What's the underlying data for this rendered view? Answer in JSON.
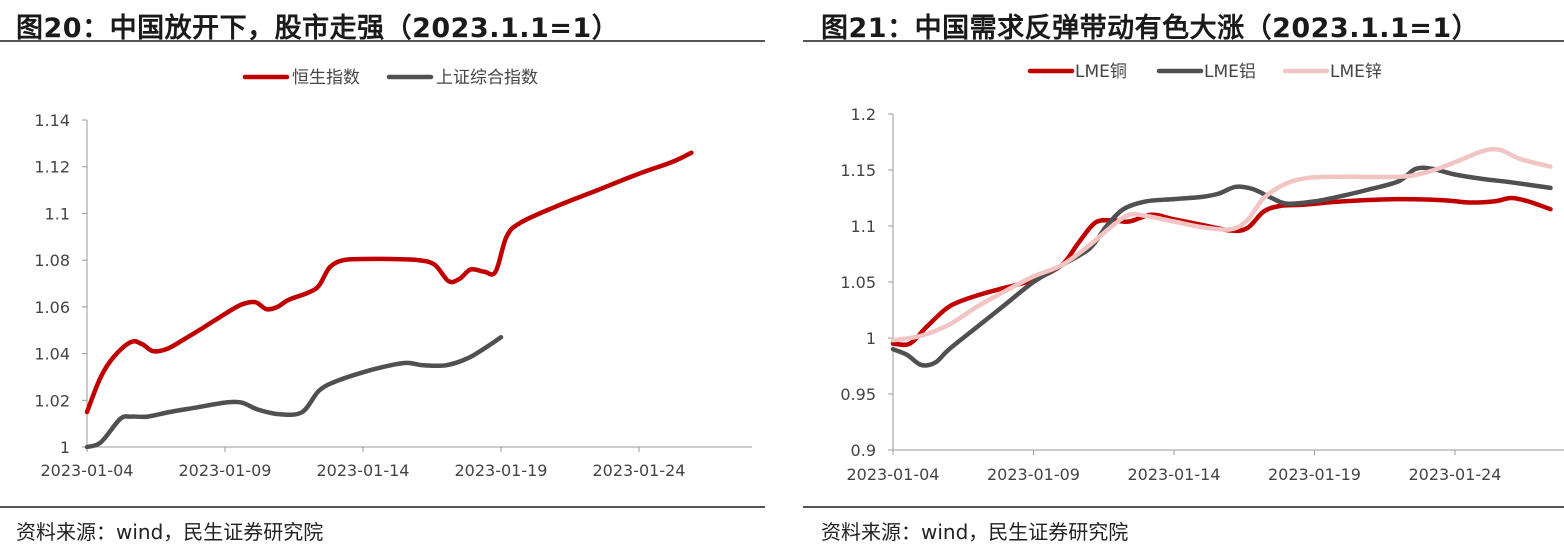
{
  "panels": [
    {
      "title": "图20：中国放开下，股市走强（2023.1.1=1）",
      "source": "资料来源：wind，民生证券研究院",
      "chart_data": {
        "type": "line",
        "x_ticks": [
          "2023-01-04",
          "2023-01-09",
          "2023-01-14",
          "2023-01-19",
          "2023-01-24"
        ],
        "x_range": [
          0,
          24
        ],
        "ylim": [
          1,
          1.14
        ],
        "y_ticks": [
          "1",
          "1.02",
          "1.04",
          "1.06",
          "1.08",
          "1.1",
          "1.12",
          "1.14"
        ],
        "legend_position": "top-center",
        "series": [
          {
            "name": "恒生指数",
            "color": "#c00000",
            "points": [
              [
                0,
                1.015
              ],
              [
                0.5,
                1.03
              ],
              [
                1,
                1.039
              ],
              [
                1.6,
                1.045
              ],
              [
                2,
                1.044
              ],
              [
                2.4,
                1.041
              ],
              [
                2.9,
                1.042
              ],
              [
                3.5,
                1.046
              ],
              [
                4.2,
                1.051
              ],
              [
                5,
                1.057
              ],
              [
                5.6,
                1.061
              ],
              [
                6.1,
                1.062
              ],
              [
                6.5,
                1.059
              ],
              [
                6.9,
                1.06
              ],
              [
                7.3,
                1.063
              ],
              [
                8,
                1.066
              ],
              [
                8.4,
                1.069
              ],
              [
                8.8,
                1.077
              ],
              [
                9.3,
                1.08
              ],
              [
                10,
                1.0805
              ],
              [
                11,
                1.0805
              ],
              [
                12,
                1.08
              ],
              [
                12.6,
                1.078
              ],
              [
                13.1,
                1.071
              ],
              [
                13.5,
                1.072
              ],
              [
                13.9,
                1.076
              ],
              [
                14.4,
                1.075
              ],
              [
                14.8,
                1.075
              ],
              [
                15.2,
                1.09
              ],
              [
                15.7,
                1.096
              ],
              [
                17,
                1.103
              ],
              [
                18.5,
                1.11
              ],
              [
                20,
                1.117
              ],
              [
                21.2,
                1.122
              ],
              [
                21.9,
                1.126
              ]
            ]
          },
          {
            "name": "上证综合指数",
            "color": "#505050",
            "points": [
              [
                0,
                1.0
              ],
              [
                0.5,
                1.002
              ],
              [
                1.2,
                1.012
              ],
              [
                1.6,
                1.013
              ],
              [
                2.2,
                1.013
              ],
              [
                3,
                1.015
              ],
              [
                4,
                1.017
              ],
              [
                5,
                1.019
              ],
              [
                5.6,
                1.019
              ],
              [
                6.2,
                1.016
              ],
              [
                7,
                1.014
              ],
              [
                7.8,
                1.015
              ],
              [
                8.4,
                1.024
              ],
              [
                9,
                1.028
              ],
              [
                10,
                1.032
              ],
              [
                11,
                1.035
              ],
              [
                11.6,
                1.036
              ],
              [
                12.2,
                1.035
              ],
              [
                13,
                1.035
              ],
              [
                13.8,
                1.038
              ],
              [
                14.5,
                1.043
              ],
              [
                15,
                1.047
              ]
            ]
          }
        ]
      }
    },
    {
      "title": "图21：中国需求反弹带动有色大涨（2023.1.1=1）",
      "source": "资料来源：wind，民生证券研究院",
      "chart_data": {
        "type": "line",
        "x_ticks": [
          "2023-01-04",
          "2023-01-09",
          "2023-01-14",
          "2023-01-19",
          "2023-01-24"
        ],
        "x_range": [
          0,
          24
        ],
        "ylim": [
          0.9,
          1.2
        ],
        "y_ticks": [
          "0.9",
          "0.95",
          "1",
          "1.05",
          "1.1",
          "1.15",
          "1.2"
        ],
        "legend_position": "top-center",
        "series": [
          {
            "name": "LME铜",
            "color": "#c00000",
            "points": [
              [
                0,
                0.995
              ],
              [
                0.6,
                0.995
              ],
              [
                1.2,
                1.01
              ],
              [
                2,
                1.028
              ],
              [
                3,
                1.038
              ],
              [
                4,
                1.045
              ],
              [
                5,
                1.052
              ],
              [
                6,
                1.065
              ],
              [
                6.6,
                1.085
              ],
              [
                7.2,
                1.103
              ],
              [
                7.8,
                1.105
              ],
              [
                8.4,
                1.104
              ],
              [
                9.2,
                1.11
              ],
              [
                10,
                1.106
              ],
              [
                11,
                1.101
              ],
              [
                12,
                1.096
              ],
              [
                12.6,
                1.098
              ],
              [
                13.2,
                1.113
              ],
              [
                13.8,
                1.118
              ],
              [
                14.6,
                1.119
              ],
              [
                16,
                1.122
              ],
              [
                18,
                1.124
              ],
              [
                19.6,
                1.123
              ],
              [
                20.5,
                1.121
              ],
              [
                21.4,
                1.122
              ],
              [
                22,
                1.125
              ],
              [
                22.6,
                1.122
              ],
              [
                23.4,
                1.115
              ]
            ]
          },
          {
            "name": "LME铝",
            "color": "#505050",
            "points": [
              [
                0,
                0.99
              ],
              [
                0.5,
                0.985
              ],
              [
                1,
                0.976
              ],
              [
                1.5,
                0.978
              ],
              [
                2,
                0.99
              ],
              [
                3,
                1.01
              ],
              [
                4,
                1.03
              ],
              [
                5,
                1.05
              ],
              [
                6,
                1.065
              ],
              [
                7,
                1.08
              ],
              [
                7.6,
                1.1
              ],
              [
                8.2,
                1.115
              ],
              [
                9,
                1.122
              ],
              [
                10,
                1.124
              ],
              [
                11,
                1.126
              ],
              [
                11.6,
                1.129
              ],
              [
                12.2,
                1.135
              ],
              [
                12.8,
                1.133
              ],
              [
                13.4,
                1.126
              ],
              [
                14,
                1.12
              ],
              [
                15,
                1.122
              ],
              [
                16,
                1.127
              ],
              [
                17,
                1.133
              ],
              [
                18,
                1.14
              ],
              [
                18.6,
                1.151
              ],
              [
                19.2,
                1.151
              ],
              [
                20,
                1.146
              ],
              [
                21,
                1.142
              ],
              [
                22,
                1.139
              ],
              [
                23.4,
                1.134
              ]
            ]
          },
          {
            "name": "LME锌",
            "color": "#f2c4c4",
            "points": [
              [
                0,
                0.998
              ],
              [
                1,
                1.002
              ],
              [
                2,
                1.012
              ],
              [
                3,
                1.028
              ],
              [
                4,
                1.042
              ],
              [
                5,
                1.055
              ],
              [
                6,
                1.065
              ],
              [
                7,
                1.083
              ],
              [
                7.8,
                1.1
              ],
              [
                8.4,
                1.11
              ],
              [
                9,
                1.109
              ],
              [
                10,
                1.104
              ],
              [
                11,
                1.099
              ],
              [
                12,
                1.097
              ],
              [
                12.6,
                1.105
              ],
              [
                13.2,
                1.125
              ],
              [
                14,
                1.138
              ],
              [
                14.8,
                1.143
              ],
              [
                16,
                1.144
              ],
              [
                18,
                1.144
              ],
              [
                19,
                1.148
              ],
              [
                20,
                1.157
              ],
              [
                21,
                1.167
              ],
              [
                21.6,
                1.168
              ],
              [
                22.3,
                1.16
              ],
              [
                23.4,
                1.153
              ]
            ]
          }
        ]
      }
    }
  ]
}
